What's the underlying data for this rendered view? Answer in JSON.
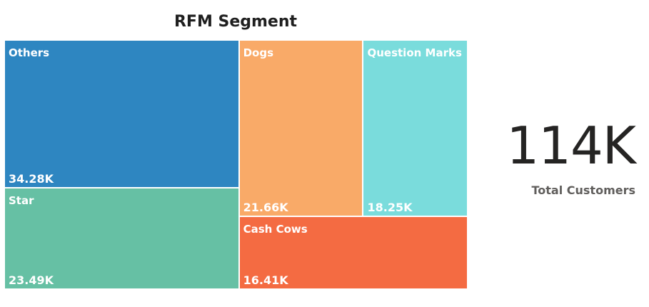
{
  "chart_data": {
    "type": "treemap",
    "title": "RFM Segment",
    "segments": [
      {
        "name": "Others",
        "value": 34.28,
        "label": "34.28K",
        "color": "#2e86c1"
      },
      {
        "name": "Star",
        "value": 23.49,
        "label": "23.49K",
        "color": "#66c0a4"
      },
      {
        "name": "Dogs",
        "value": 21.66,
        "label": "21.66K",
        "color": "#f9aa68"
      },
      {
        "name": "Question Marks",
        "value": 18.25,
        "label": "18.25K",
        "color": "#7adcdc"
      },
      {
        "name": "Cash Cows",
        "value": 16.41,
        "label": "16.41K",
        "color": "#f46b42"
      }
    ]
  },
  "kpi": {
    "value": "114K",
    "label": "Total Customers"
  }
}
